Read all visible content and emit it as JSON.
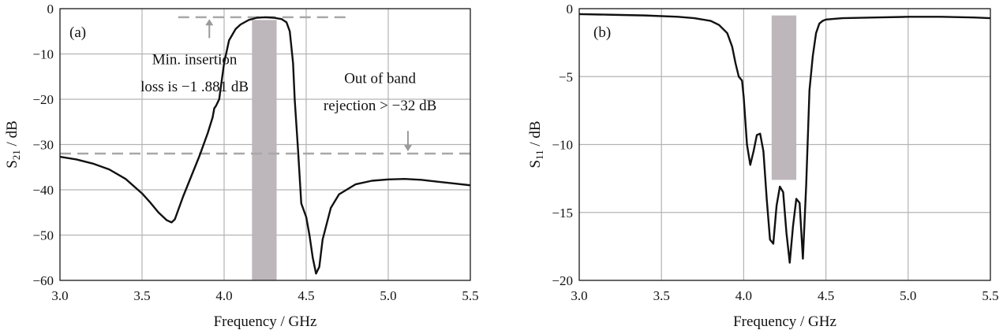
{
  "chart_data": [
    {
      "type": "line",
      "panel_label": "(a)",
      "xlabel": "Frequency / GHz",
      "ylabel": "S21 / dB",
      "ylabel_main": "S",
      "ylabel_sub": "21",
      "ylabel_tail": " / dB",
      "xlim": [
        3.0,
        5.5
      ],
      "ylim": [
        -60,
        0
      ],
      "xticks": [
        "3.0",
        "3.5",
        "4.0",
        "4.5",
        "5.0",
        "5.5"
      ],
      "yticks": [
        "0",
        "−10",
        "−20",
        "−30",
        "−40",
        "−50",
        "−60"
      ],
      "grid": true,
      "passband_highlight": {
        "x_start": 4.17,
        "x_end": 4.32,
        "y_top": -2.5,
        "y_bottom": -60
      },
      "reference_lines": [
        {
          "y": -1.881,
          "x_start": 3.72,
          "x_end": 4.75
        },
        {
          "y": -32,
          "x_start": 3.0,
          "x_end": 5.5
        }
      ],
      "arrows": [
        {
          "x": 3.91,
          "y_from": -6.5,
          "y_to": -2.3
        },
        {
          "x": 5.12,
          "y_from": -27,
          "y_to": -31.5
        }
      ],
      "annotations": [
        {
          "text": "Min. insertion",
          "x": 3.82,
          "y": -12.3
        },
        {
          "text": "loss is −1 .881 dB",
          "x": 3.82,
          "y": -18.3
        },
        {
          "text": "Out of band",
          "x": 4.95,
          "y": -16.4
        },
        {
          "text": "rejection > −32 dB",
          "x": 4.95,
          "y": -22.4
        }
      ],
      "series": [
        {
          "x": [
            3.0,
            3.1,
            3.2,
            3.3,
            3.4,
            3.5,
            3.55,
            3.6,
            3.65,
            3.68,
            3.7,
            3.72,
            3.75,
            3.8,
            3.85,
            3.9,
            3.93,
            3.94,
            3.95,
            3.97,
            4.0,
            4.03,
            4.07,
            4.1,
            4.15,
            4.2,
            4.25,
            4.3,
            4.35,
            4.38,
            4.4,
            4.42,
            4.43,
            4.45,
            4.47,
            4.5,
            4.52,
            4.54,
            4.56,
            4.58,
            4.6,
            4.65,
            4.7,
            4.8,
            4.9,
            5.0,
            5.1,
            5.2,
            5.3,
            5.4,
            5.5
          ],
          "y": [
            -32.7,
            -33.3,
            -34.2,
            -35.5,
            -37.6,
            -40.8,
            -42.8,
            -45.0,
            -46.7,
            -47.2,
            -46.5,
            -44.5,
            -41.5,
            -37.0,
            -32.5,
            -27.5,
            -24.0,
            -22.0,
            -21.5,
            -20.0,
            -12.0,
            -7.0,
            -4.5,
            -3.5,
            -2.5,
            -2.0,
            -1.9,
            -2.0,
            -2.3,
            -3.0,
            -5.0,
            -12.0,
            -20.0,
            -31.0,
            -43.0,
            -46.0,
            -50.0,
            -55.0,
            -58.5,
            -57.0,
            -51.0,
            -44.0,
            -41.0,
            -38.8,
            -38.0,
            -37.7,
            -37.6,
            -37.8,
            -38.2,
            -38.6,
            -39.0
          ]
        }
      ]
    },
    {
      "type": "line",
      "panel_label": "(b)",
      "xlabel": "Frequency / GHz",
      "ylabel": "S11 / dB",
      "ylabel_main": "S",
      "ylabel_sub": "11",
      "ylabel_tail": " / dB",
      "xlim": [
        3.0,
        5.5
      ],
      "ylim": [
        -20,
        0
      ],
      "xticks": [
        "3.0",
        "3.5",
        "4.0",
        "4.5",
        "5.0",
        "5.5"
      ],
      "yticks": [
        "0",
        "−5",
        "−10",
        "−15",
        "−20"
      ],
      "grid": true,
      "passband_highlight": {
        "x_start": 4.17,
        "x_end": 4.32,
        "y_top": -0.5,
        "y_bottom": -12.6
      },
      "series": [
        {
          "x": [
            3.0,
            3.2,
            3.4,
            3.6,
            3.7,
            3.8,
            3.85,
            3.9,
            3.93,
            3.95,
            3.97,
            3.99,
            4.0,
            4.02,
            4.04,
            4.06,
            4.08,
            4.1,
            4.12,
            4.14,
            4.16,
            4.18,
            4.2,
            4.22,
            4.24,
            4.26,
            4.28,
            4.3,
            4.32,
            4.34,
            4.36,
            4.38,
            4.4,
            4.42,
            4.44,
            4.46,
            4.48,
            4.5,
            4.6,
            4.8,
            5.0,
            5.2,
            5.4,
            5.5
          ],
          "y": [
            -0.4,
            -0.45,
            -0.5,
            -0.6,
            -0.7,
            -0.9,
            -1.2,
            -1.8,
            -2.8,
            -4.0,
            -5.0,
            -5.3,
            -6.5,
            -10.0,
            -11.5,
            -10.5,
            -9.3,
            -9.2,
            -10.5,
            -14.0,
            -17.0,
            -17.3,
            -14.5,
            -13.1,
            -13.5,
            -16.5,
            -18.7,
            -16.0,
            -14.0,
            -14.3,
            -18.4,
            -13.0,
            -6.0,
            -3.5,
            -1.8,
            -1.1,
            -0.9,
            -0.8,
            -0.7,
            -0.65,
            -0.6,
            -0.6,
            -0.65,
            -0.7
          ]
        }
      ]
    }
  ]
}
